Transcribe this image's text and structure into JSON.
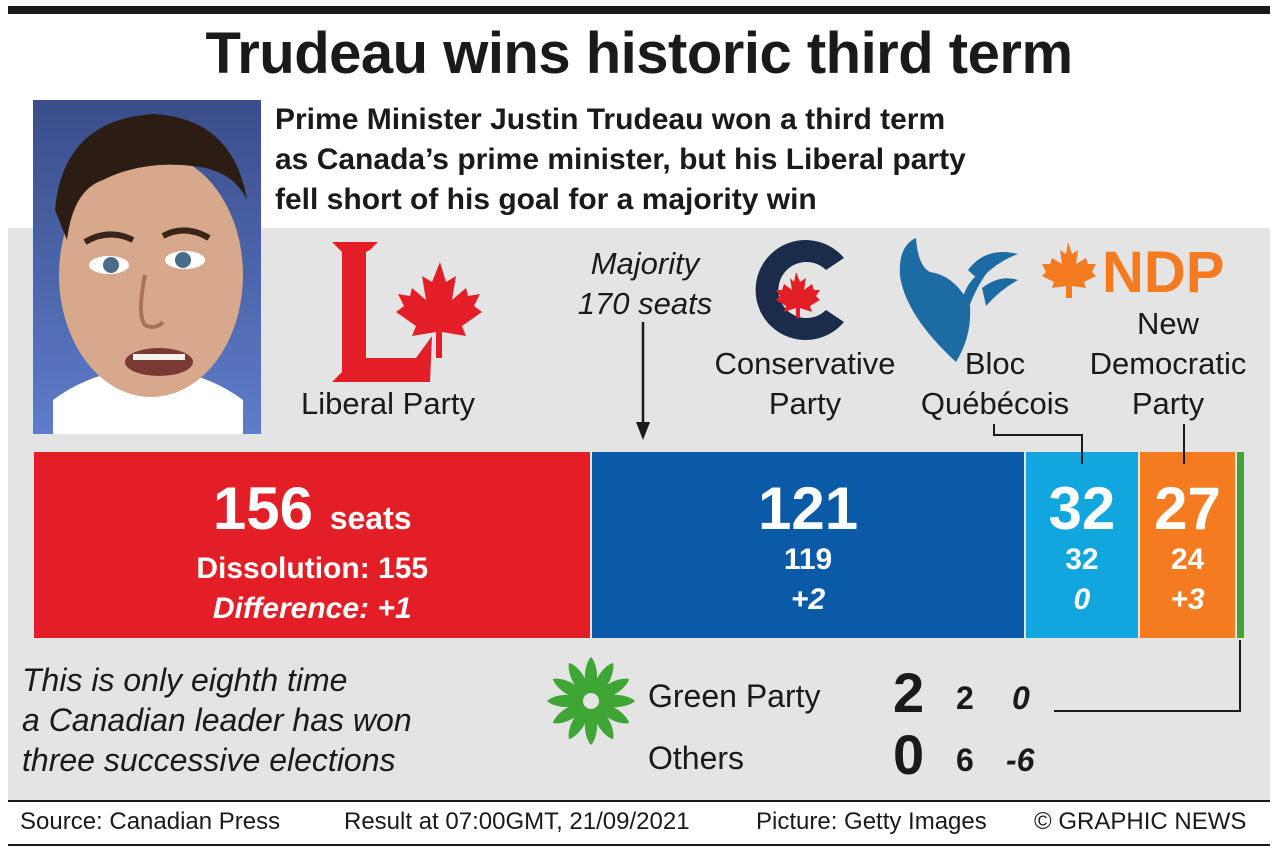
{
  "title": "Trudeau wins historic third term",
  "subtitle_lines": [
    "Prime Minister Justin Trudeau won a third term",
    "as Canada’s prime minister, but his Liberal party",
    "fell short of his goal for a majority win"
  ],
  "majority_label": [
    "Majority",
    "170 seats"
  ],
  "logos": {
    "ndp_text": "NDP"
  },
  "party_labels": {
    "liberal": [
      "Liberal Party"
    ],
    "conservative": [
      "Conservative",
      "Party"
    ],
    "bloc": [
      "Bloc",
      "Québécois"
    ],
    "ndp": [
      "New",
      "Democratic",
      "Party"
    ]
  },
  "bar_text": {
    "liberal": {
      "seats": "156",
      "seats_unit": "seats",
      "dissolution": "Dissolution: 155",
      "difference": "Difference: +1"
    },
    "conservative": {
      "seats": "121",
      "dissolution": "119",
      "difference": "+2"
    },
    "bloc": {
      "seats": "32",
      "dissolution": "32",
      "difference": "0"
    },
    "ndp": {
      "seats": "27",
      "dissolution": "24",
      "difference": "+3"
    }
  },
  "note_lines": [
    "This is only eighth time",
    "a Canadian leader has won",
    "three successive elections"
  ],
  "others": [
    {
      "name": "Green Party",
      "seats": "2",
      "dissolution": "2",
      "difference": "0"
    },
    {
      "name": "Others",
      "seats": "0",
      "dissolution": "6",
      "difference": "-6"
    }
  ],
  "footer": {
    "source": "Source: Canadian Press",
    "result": "Result at 07:00GMT, 21/09/2021",
    "picture": "Picture: Getty Images",
    "credit": "© GRAPHIC NEWS"
  },
  "colors": {
    "liberal": "#e31e26",
    "conservative": "#0b5aa8",
    "bloc": "#12a6df",
    "ndp": "#f47b20",
    "green": "#3fa535",
    "conservative_logo": "#1b2c4b",
    "bloc_logo": "#1d6ba3"
  },
  "chart_data": {
    "type": "bar",
    "orientation": "horizontal-stacked",
    "total_seats": 338,
    "majority_threshold": 170,
    "categories": [
      "Liberal Party",
      "Conservative Party",
      "Bloc Québécois",
      "New Democratic Party",
      "Green Party",
      "Others"
    ],
    "series": [
      {
        "name": "Seats",
        "values": [
          156,
          121,
          32,
          27,
          2,
          0
        ]
      },
      {
        "name": "Dissolution",
        "values": [
          155,
          119,
          32,
          24,
          2,
          6
        ]
      },
      {
        "name": "Difference",
        "values": [
          1,
          2,
          0,
          3,
          0,
          -6
        ]
      }
    ]
  }
}
